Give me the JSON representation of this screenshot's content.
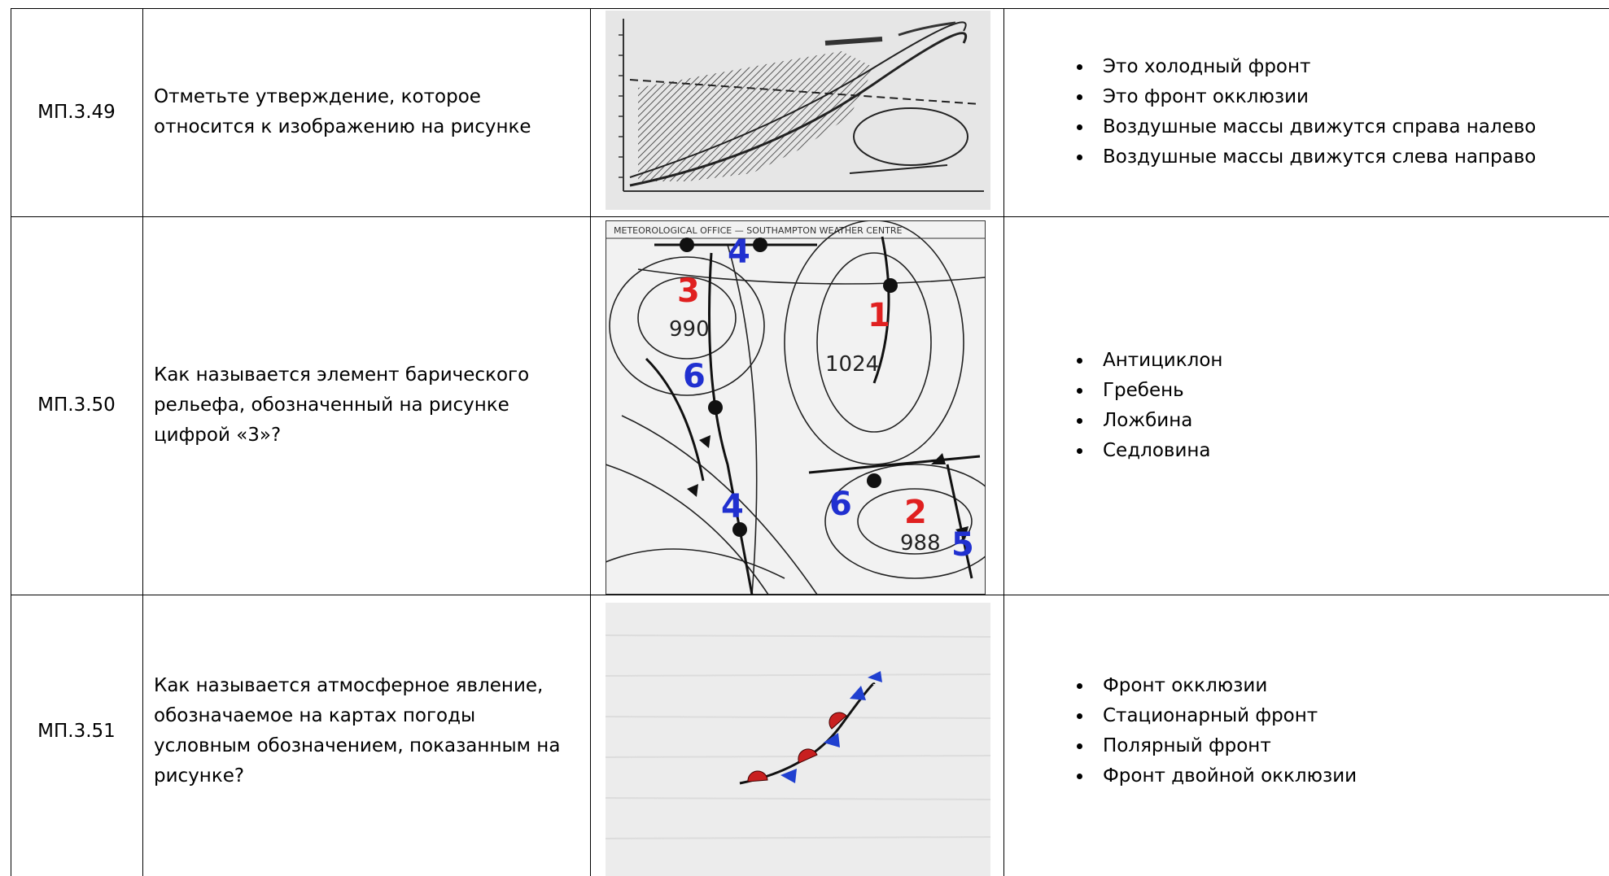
{
  "rows": [
    {
      "code": "МП.3.49",
      "question": "Отметьте утверждение, которое относится к изображению на рисунке",
      "options": [
        "Это холодный фронт",
        "Это фронт окклюзии",
        "Воздушные массы движутся справа налево",
        "Воздушные массы движутся слева направо"
      ]
    },
    {
      "code": "МП.3.50",
      "question": "Как называется элемент барического рельефа, обозначенный на рисунке цифрой «3»?",
      "options": [
        "Антициклон",
        "Гребень",
        "Ложбина",
        "Седловина"
      ]
    },
    {
      "code": "МП.3.51",
      "question": "Как называется атмосферное явление, обозначаемое на картах погоды условным обозначением, показанным на рисунке?",
      "options": [
        "Фронт окклюзии",
        "Стационарный фронт",
        "Полярный фронт",
        "Фронт двойной окклюзии"
      ]
    }
  ],
  "map": {
    "header": "METEOROLOGICAL OFFICE — SOUTHAMPTON WEATHER CENTRE",
    "labels": [
      "3",
      "4",
      "1",
      "990",
      "1024",
      "6",
      "4",
      "6",
      "2",
      "988",
      "5"
    ]
  }
}
